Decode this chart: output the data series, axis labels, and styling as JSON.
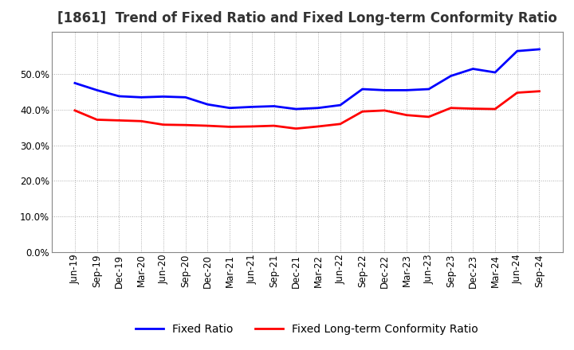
{
  "title": "[1861]  Trend of Fixed Ratio and Fixed Long-term Conformity Ratio",
  "labels": [
    "Jun-19",
    "Sep-19",
    "Dec-19",
    "Mar-20",
    "Jun-20",
    "Sep-20",
    "Dec-20",
    "Mar-21",
    "Jun-21",
    "Sep-21",
    "Dec-21",
    "Mar-22",
    "Jun-22",
    "Sep-22",
    "Dec-22",
    "Mar-23",
    "Jun-23",
    "Sep-23",
    "Dec-23",
    "Mar-24",
    "Jun-24",
    "Sep-24"
  ],
  "fixed_ratio": [
    47.5,
    45.5,
    43.8,
    43.5,
    43.7,
    43.5,
    41.5,
    40.5,
    40.8,
    41.0,
    40.2,
    40.5,
    41.3,
    45.8,
    45.5,
    45.5,
    45.8,
    49.5,
    51.5,
    50.5,
    56.5,
    57.0
  ],
  "fixed_lt_ratio": [
    39.8,
    37.2,
    37.0,
    36.8,
    35.8,
    35.7,
    35.5,
    35.2,
    35.3,
    35.5,
    34.7,
    35.3,
    36.0,
    39.5,
    39.8,
    38.5,
    38.0,
    40.5,
    40.3,
    40.2,
    44.8,
    45.2
  ],
  "fixed_ratio_color": "#0000ff",
  "fixed_lt_ratio_color": "#ff0000",
  "ylim": [
    0,
    62
  ],
  "yticks": [
    0,
    10,
    20,
    30,
    40,
    50
  ],
  "background_color": "#ffffff",
  "grid_color": "#aaaaaa",
  "title_fontsize": 12,
  "legend_fontsize": 10,
  "tick_fontsize": 8.5
}
